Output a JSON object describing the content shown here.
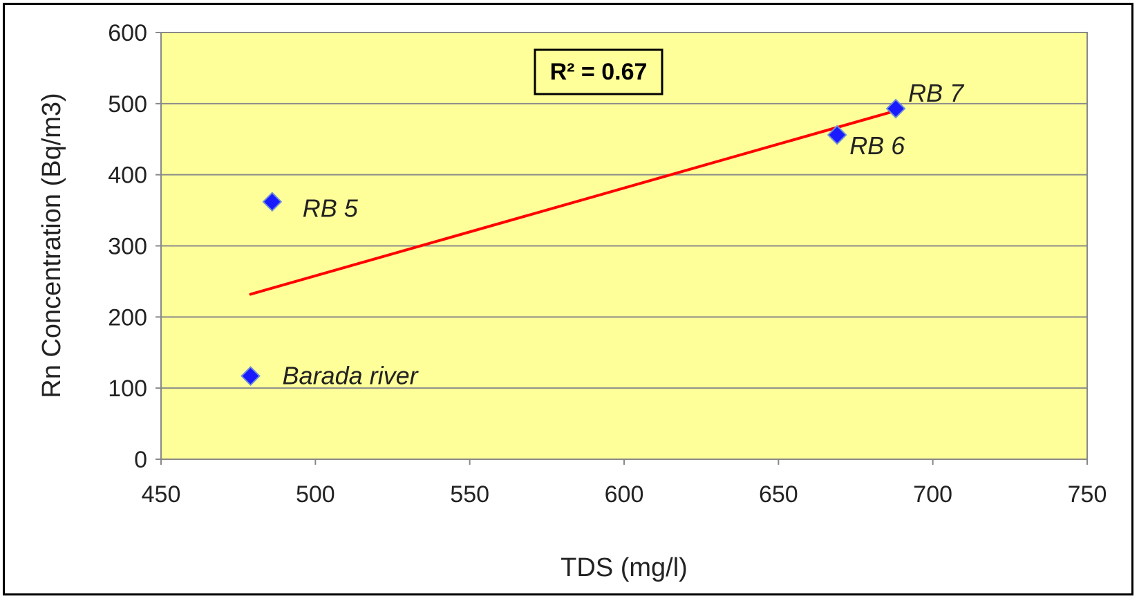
{
  "chart_data": {
    "type": "scatter",
    "title": "",
    "xlabel": "TDS (mg/l)",
    "ylabel": "Rn Concentration (Bq/m3)",
    "xlim": [
      450,
      750
    ],
    "ylim": [
      0,
      600
    ],
    "xticks": [
      450,
      500,
      550,
      600,
      650,
      700,
      750
    ],
    "yticks": [
      0,
      100,
      200,
      300,
      400,
      500,
      600
    ],
    "grid": "horizontal",
    "legend": "none",
    "plot_background": "#ffff99",
    "marker_color": "#1a1aff",
    "trendline_color": "#ff0000",
    "points": [
      {
        "label": "Barada river",
        "x": 479,
        "y": 117
      },
      {
        "label": "RB 5",
        "x": 486,
        "y": 362
      },
      {
        "label": "RB 6",
        "x": 669,
        "y": 456
      },
      {
        "label": "RB 7",
        "x": 688,
        "y": 493
      }
    ],
    "trendline": {
      "type": "linear",
      "points": [
        [
          479,
          232
        ],
        [
          688,
          490
        ]
      ],
      "r2_label": "R² = 0.67"
    }
  }
}
